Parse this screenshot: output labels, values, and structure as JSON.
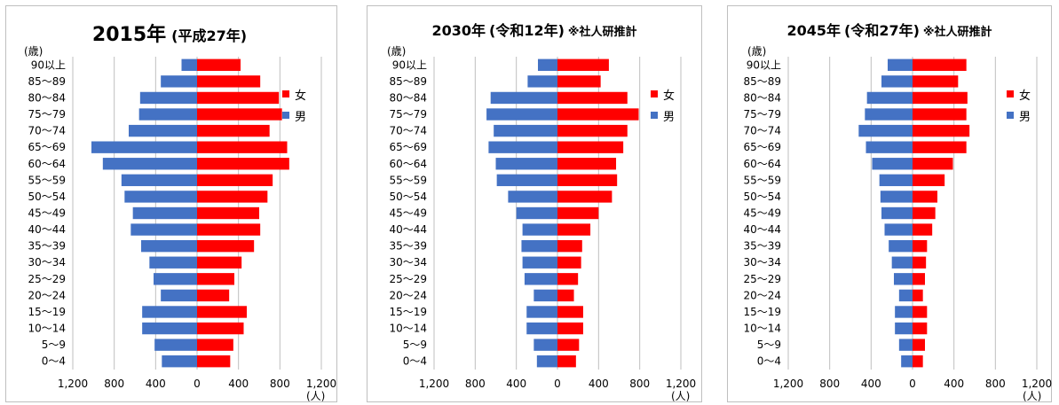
{
  "age_unit": "(歳)",
  "x_unit": "(人)",
  "legend": {
    "female": "女",
    "male": "男"
  },
  "colors": {
    "female": "#ff0000",
    "male": "#4472c4",
    "grid": "#bfbfbf"
  },
  "chart_data": [
    {
      "type": "bar",
      "title": "2015年",
      "subtitle": "(平成27年)",
      "note": "",
      "categories": [
        "0〜4",
        "5〜9",
        "10〜14",
        "15〜19",
        "20〜24",
        "25〜29",
        "30〜34",
        "35〜39",
        "40〜44",
        "45〜49",
        "50〜54",
        "55〜59",
        "60〜64",
        "65〜69",
        "70〜74",
        "75〜79",
        "80〜84",
        "85〜89",
        "90以上"
      ],
      "xlim": [
        -1200,
        1200
      ],
      "xticks": [
        "1,200",
        "800",
        "400",
        "0",
        "400",
        "800",
        "1,200"
      ],
      "series": [
        {
          "name": "男",
          "values": [
            340,
            410,
            530,
            530,
            350,
            420,
            460,
            540,
            640,
            620,
            700,
            730,
            910,
            1020,
            660,
            560,
            550,
            350,
            150
          ]
        },
        {
          "name": "女",
          "values": [
            320,
            350,
            450,
            480,
            310,
            360,
            430,
            550,
            610,
            600,
            680,
            730,
            890,
            870,
            700,
            820,
            790,
            610,
            420
          ]
        }
      ]
    },
    {
      "type": "bar",
      "title": "2030年",
      "subtitle": "(令和12年)",
      "note": "※社人研推計",
      "categories": [
        "0〜4",
        "5〜9",
        "10〜14",
        "15〜19",
        "20〜24",
        "25〜29",
        "30〜34",
        "35〜39",
        "40〜44",
        "45〜49",
        "50〜54",
        "55〜59",
        "60〜64",
        "65〜69",
        "70〜74",
        "75〜79",
        "80〜84",
        "85〜89",
        "90以上"
      ],
      "xlim": [
        -1200,
        1200
      ],
      "xticks": [
        "1,200",
        "800",
        "400",
        "0",
        "400",
        "800",
        "1,200"
      ],
      "series": [
        {
          "name": "男",
          "values": [
            200,
            230,
            300,
            300,
            230,
            320,
            340,
            350,
            340,
            400,
            480,
            590,
            600,
            670,
            620,
            690,
            650,
            290,
            190
          ]
        },
        {
          "name": "女",
          "values": [
            180,
            210,
            250,
            250,
            160,
            200,
            230,
            240,
            320,
            400,
            530,
            580,
            570,
            640,
            680,
            790,
            680,
            420,
            500
          ]
        }
      ]
    },
    {
      "type": "bar",
      "title": "2045年",
      "subtitle": "(令和27年)",
      "note": "※社人研推計",
      "categories": [
        "0〜4",
        "5〜9",
        "10〜14",
        "15〜19",
        "20〜24",
        "25〜29",
        "30〜34",
        "35〜39",
        "40〜44",
        "45〜49",
        "50〜54",
        "55〜59",
        "60〜64",
        "65〜69",
        "70〜74",
        "75〜79",
        "80〜84",
        "85〜89",
        "90以上"
      ],
      "xlim": [
        -1200,
        1200
      ],
      "xticks": [
        "1,200",
        "800",
        "400",
        "0",
        "400",
        "800",
        "1,200"
      ],
      "series": [
        {
          "name": "男",
          "values": [
            110,
            130,
            170,
            170,
            130,
            180,
            200,
            230,
            270,
            300,
            310,
            320,
            390,
            450,
            520,
            460,
            440,
            300,
            240
          ]
        },
        {
          "name": "女",
          "values": [
            100,
            120,
            140,
            140,
            100,
            120,
            130,
            140,
            190,
            220,
            240,
            310,
            390,
            520,
            550,
            520,
            530,
            440,
            520
          ]
        }
      ]
    }
  ]
}
